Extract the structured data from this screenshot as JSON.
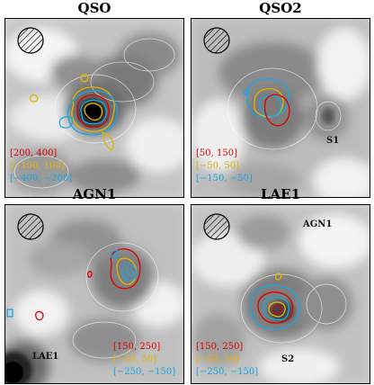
{
  "colors": {
    "red": "#dd0000",
    "yellow": "#e6b400",
    "cyan": "#17a8e6"
  },
  "panels": [
    {
      "title": "QSO",
      "ranges": [
        {
          "text": "[200, 400]",
          "color": "red"
        },
        {
          "text": "[−100, 100]",
          "color": "yellow"
        },
        {
          "text": "[−400, −200]",
          "color": "cyan"
        }
      ],
      "sources": [],
      "beam_icon": "hatched-circle-beam"
    },
    {
      "title": "QSO2",
      "ranges": [
        {
          "text": "[50, 150]",
          "color": "red"
        },
        {
          "text": "[−50, 50]",
          "color": "yellow"
        },
        {
          "text": "[−150, −50]",
          "color": "cyan"
        }
      ],
      "sources": [
        "S1"
      ],
      "beam_icon": "hatched-circle-beam"
    },
    {
      "title": "AGN1",
      "ranges": [
        {
          "text": "[150, 250]",
          "color": "red"
        },
        {
          "text": "[−50, 50]",
          "color": "yellow"
        },
        {
          "text": "[−250, −150]",
          "color": "cyan"
        }
      ],
      "sources": [
        "LAE1"
      ],
      "beam_icon": "hatched-circle-beam"
    },
    {
      "title": "LAE1",
      "ranges": [
        {
          "text": "[150, 250]",
          "color": "red"
        },
        {
          "text": "[−50, 50]",
          "color": "yellow"
        },
        {
          "text": "[−250, −150]",
          "color": "cyan"
        }
      ],
      "sources": [
        "AGN1",
        "S2"
      ],
      "beam_icon": "hatched-circle-beam"
    }
  ]
}
